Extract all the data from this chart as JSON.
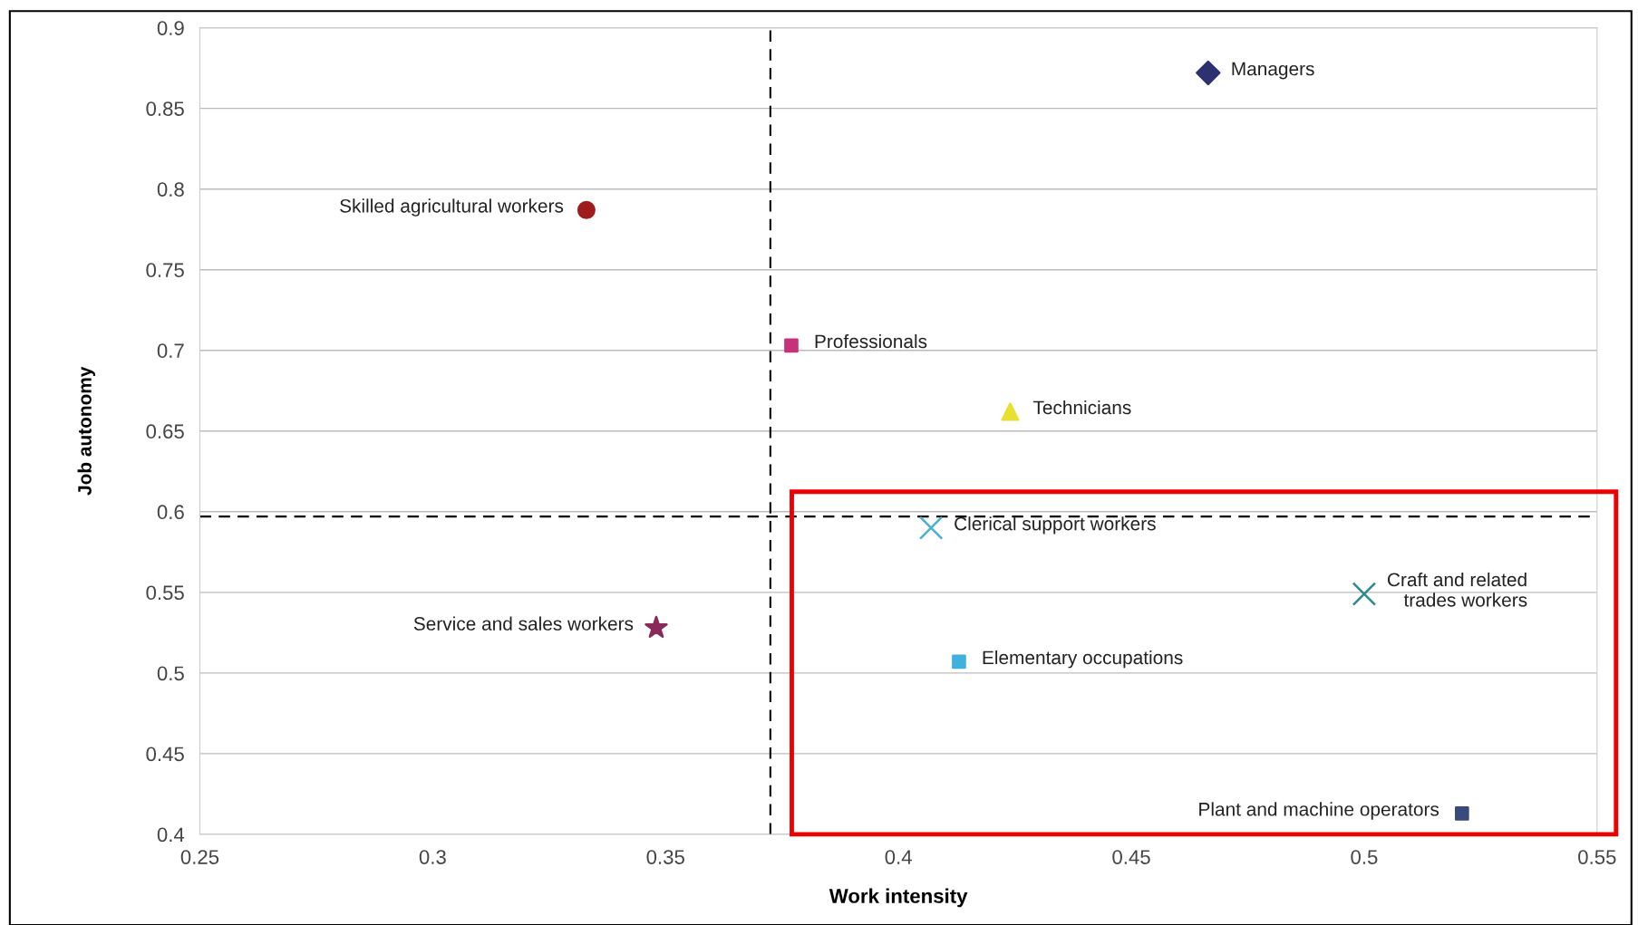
{
  "chart_data": {
    "type": "scatter",
    "xlabel": "Work intensity",
    "ylabel": "Job autonomy",
    "xlim": [
      0.25,
      0.55
    ],
    "xticks": [
      0.25,
      0.3,
      0.35,
      0.4,
      0.45,
      0.5,
      0.55
    ],
    "ylim": [
      0.4,
      0.9
    ],
    "yticks": [
      0.4,
      0.45,
      0.5,
      0.55,
      0.6,
      0.65,
      0.7,
      0.75,
      0.8,
      0.85,
      0.9
    ],
    "grid": "y",
    "legend": false,
    "ref_lines": [
      {
        "axis": "x",
        "value": 0.3725,
        "color": "#000000",
        "line_style": "dashed"
      },
      {
        "axis": "y",
        "value": 0.597,
        "color": "#000000",
        "line_style": "dashed"
      }
    ],
    "series": [
      {
        "name": "Managers",
        "color": "#2e3170",
        "marker": "diamond",
        "x": [
          0.4665
        ],
        "values": [
          0.872
        ]
      },
      {
        "name": "Skilled agricultural workers",
        "color": "#a01c1c",
        "marker": "circle",
        "x": [
          0.333
        ],
        "values": [
          0.787
        ]
      },
      {
        "name": "Professionals",
        "color": "#c8327a",
        "marker": "square",
        "x": [
          0.377
        ],
        "values": [
          0.703
        ]
      },
      {
        "name": "Technicians",
        "color": "#e8e030",
        "marker": "triangle",
        "x": [
          0.424
        ],
        "values": [
          0.662
        ]
      },
      {
        "name": "Clerical support workers",
        "color": "#4ab0d0",
        "marker": "cross",
        "x": [
          0.407
        ],
        "values": [
          0.59
        ]
      },
      {
        "name": "Craft and related\ntrades workers",
        "color": "#2e8a8a",
        "marker": "cross",
        "x": [
          0.5
        ],
        "values": [
          0.549
        ]
      },
      {
        "name": "Service and sales workers",
        "color": "#8a2a5a",
        "marker": "star",
        "x": [
          0.348
        ],
        "values": [
          0.528
        ]
      },
      {
        "name": "Elementary occupations",
        "color": "#40b0e0",
        "marker": "square",
        "x": [
          0.413
        ],
        "values": [
          0.507
        ]
      },
      {
        "name": "Plant and machine operators",
        "color": "#3a4a7a",
        "marker": "square",
        "x": [
          0.521
        ],
        "values": [
          0.413
        ]
      }
    ]
  }
}
